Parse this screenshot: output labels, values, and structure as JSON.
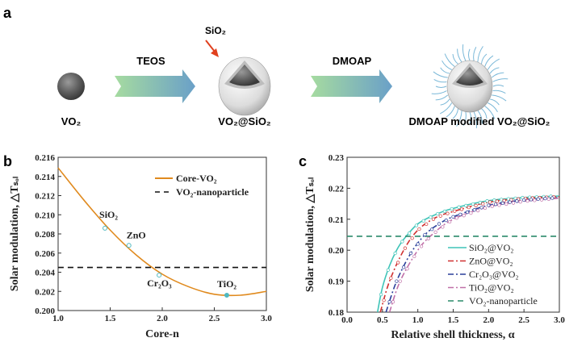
{
  "panel_a": {
    "letter": "a",
    "vo2_label": "VO₂",
    "teos_label": "TEOS",
    "sio2_pointer_label": "SiO₂",
    "vo2_sio2_label": "VO₂@SiO₂",
    "dmoap_label": "DMOAP",
    "final_label": "DMOAP modified VO₂@SiO₂",
    "colors": {
      "pointer_arrow": "#e0401e",
      "arrow_start": "#9fd6a0",
      "arrow_end": "#6fa3c8",
      "ligand": "#7ab8d8"
    }
  },
  "chart_data": [
    {
      "panel": "b",
      "type": "line",
      "xlabel": "Core-n",
      "ylabel": "Solar modulation, △Tₛₒₗ",
      "xlim": [
        1.0,
        3.0
      ],
      "ylim": [
        0.2,
        0.216
      ],
      "xticks": [
        "1.0",
        "1.5",
        "2.0",
        "2.5",
        "3.0"
      ],
      "yticks": [
        "0.200",
        "0.202",
        "0.204",
        "0.206",
        "0.208",
        "0.210",
        "0.212",
        "0.214",
        "0.216"
      ],
      "legend_position": "top-right",
      "series": [
        {
          "name": "Core-VO₂",
          "style": "solid",
          "color": "#e08a1e",
          "x": [
            1.0,
            1.25,
            1.5,
            1.75,
            2.0,
            2.25,
            2.5,
            2.75,
            3.0
          ],
          "y": [
            0.2149,
            0.2115,
            0.2084,
            0.2058,
            0.2038,
            0.2025,
            0.2017,
            0.2016,
            0.202
          ]
        },
        {
          "name": "VO₂-nanoparticle",
          "style": "dashed",
          "color": "#111111",
          "x": [
            1.0,
            3.0
          ],
          "y": [
            0.2045,
            0.2045
          ]
        }
      ],
      "points": [
        {
          "label": "SiO₂",
          "x": 1.45,
          "y": 0.2086
        },
        {
          "label": "ZnO",
          "x": 1.68,
          "y": 0.2068
        },
        {
          "label": "Cr₂O₃",
          "x": 1.97,
          "y": 0.2037
        },
        {
          "label": "TiO₂",
          "x": 2.62,
          "y": 0.2016
        }
      ],
      "marker_color": "#4fb8c0"
    },
    {
      "panel": "c",
      "type": "line",
      "xlabel": "Relative shell thickness, α",
      "ylabel": "Solar modulation, △Tₛₒₗ",
      "xlim": [
        0.0,
        3.0
      ],
      "ylim": [
        0.18,
        0.23
      ],
      "xticks": [
        "0.0",
        "0.5",
        "1.0",
        "1.5",
        "2.0",
        "2.5",
        "3.0"
      ],
      "yticks": [
        "0.18",
        "0.19",
        "0.20",
        "0.21",
        "0.22",
        "0.23"
      ],
      "legend_position": "bottom-right",
      "series": [
        {
          "name": "SiO₂@VO₂",
          "style": "solid",
          "color": "#3fc4b8",
          "x": [
            0.43,
            0.5,
            0.6,
            0.7,
            0.8,
            1.0,
            1.25,
            1.5,
            2.0,
            2.5,
            3.0
          ],
          "y": [
            0.18,
            0.188,
            0.195,
            0.2,
            0.2035,
            0.2085,
            0.2115,
            0.2135,
            0.216,
            0.217,
            0.2175
          ]
        },
        {
          "name": "ZnO@VO₂",
          "style": "dashdot",
          "color": "#d03030",
          "x": [
            0.47,
            0.6,
            0.8,
            1.0,
            1.25,
            1.5,
            2.0,
            2.5,
            3.0
          ],
          "y": [
            0.18,
            0.19,
            0.2,
            0.2065,
            0.2105,
            0.2125,
            0.2155,
            0.2167,
            0.2173
          ]
        },
        {
          "name": "Cr₂O₃@VO₂",
          "style": "dashdot",
          "color": "#2a3f9a",
          "x": [
            0.55,
            0.7,
            0.9,
            1.1,
            1.3,
            1.5,
            2.0,
            2.5,
            3.0
          ],
          "y": [
            0.18,
            0.19,
            0.199,
            0.205,
            0.2085,
            0.2108,
            0.2145,
            0.2162,
            0.217
          ]
        },
        {
          "name": "TiO₂@VO₂",
          "style": "dashdot",
          "color": "#c070a8",
          "x": [
            0.6,
            0.75,
            1.0,
            1.2,
            1.5,
            2.0,
            2.5,
            3.0
          ],
          "y": [
            0.18,
            0.19,
            0.2,
            0.205,
            0.21,
            0.214,
            0.2158,
            0.2168
          ]
        },
        {
          "name": "VO₂-nanoparticle",
          "style": "dashed",
          "color": "#2a8a6a",
          "x": [
            0.0,
            3.0
          ],
          "y": [
            0.2045,
            0.2045
          ]
        }
      ]
    }
  ],
  "panel_letters": {
    "b": "b",
    "c": "c"
  }
}
